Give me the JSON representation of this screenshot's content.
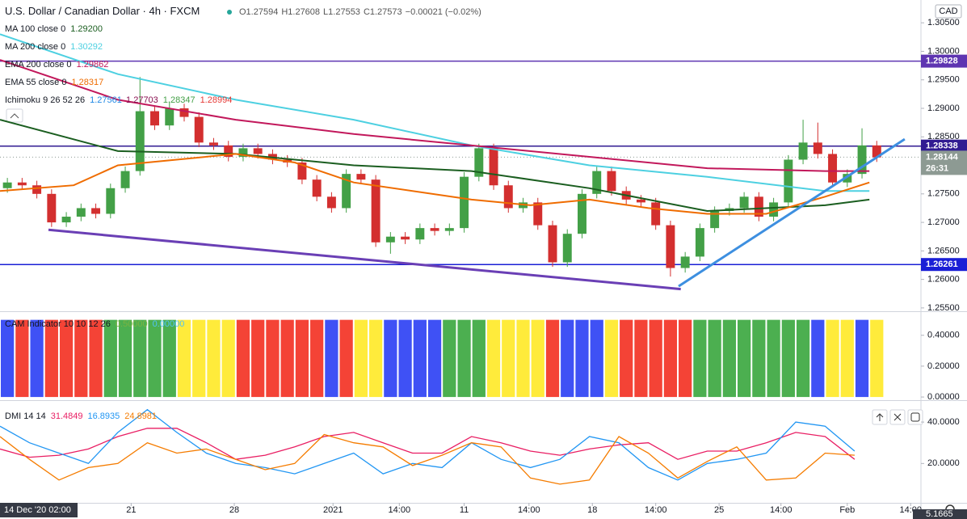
{
  "header": {
    "symbol": "U.S. Dollar / Canadian Dollar · 4h · FXCM",
    "quote": [
      "O1.27594",
      "H1.27608",
      "L1.27553",
      "C1.27573",
      "−0.00021 (−0.02%)"
    ],
    "currency": "CAD"
  },
  "xaxis": {
    "xlim": [
      0,
      62.5
    ],
    "cursor_label": "14 Dec '20 02:00",
    "xticks": [
      {
        "value": 8.9,
        "label": "21"
      },
      {
        "value": 15.9,
        "label": "28"
      },
      {
        "value": 22.6,
        "label": "2021"
      },
      {
        "value": 27.1,
        "label": "14:00"
      },
      {
        "value": 31.5,
        "label": "11"
      },
      {
        "value": 35.9,
        "label": "14:00"
      },
      {
        "value": 40.2,
        "label": "18"
      },
      {
        "value": 44.5,
        "label": "14:00"
      },
      {
        "value": 48.8,
        "label": "25"
      },
      {
        "value": 53.0,
        "label": "14:00"
      },
      {
        "value": 57.5,
        "label": "Feb"
      },
      {
        "value": 61.8,
        "label": "14:00"
      }
    ]
  },
  "chart_data": [
    {
      "type": "candlestick",
      "up_color": "#43a047",
      "down_color": "#d32f2f",
      "ylim": [
        1.2547,
        1.309
      ],
      "yticks": [
        {
          "value": 1.305,
          "label": "1.30500"
        },
        {
          "value": 1.3,
          "label": "1.30000"
        },
        {
          "value": 1.295,
          "label": "1.29500"
        },
        {
          "value": 1.29,
          "label": "1.29000"
        },
        {
          "value": 1.285,
          "label": "1.28500"
        },
        {
          "value": 1.28,
          "label": "1.28000"
        },
        {
          "value": 1.275,
          "label": "1.27500"
        },
        {
          "value": 1.27,
          "label": "1.27000"
        },
        {
          "value": 1.265,
          "label": "1.26500"
        },
        {
          "value": 1.26,
          "label": "1.26000"
        },
        {
          "value": 1.255,
          "label": "1.25500"
        }
      ],
      "ohlc": [
        [
          1.276,
          1.2778,
          1.2752,
          1.277
        ],
        [
          1.277,
          1.2778,
          1.2757,
          1.2765
        ],
        [
          1.2765,
          1.2773,
          1.2742,
          1.275
        ],
        [
          1.275,
          1.2758,
          1.2692,
          1.27
        ],
        [
          1.27,
          1.2718,
          1.2692,
          1.271
        ],
        [
          1.271,
          1.2733,
          1.2702,
          1.2725
        ],
        [
          1.2725,
          1.2733,
          1.2707,
          1.2715
        ],
        [
          1.2715,
          1.2768,
          1.2707,
          1.276
        ],
        [
          1.276,
          1.2798,
          1.2752,
          1.279
        ],
        [
          1.279,
          1.2955,
          1.2782,
          1.2895
        ],
        [
          1.2895,
          1.2903,
          1.2862,
          1.287
        ],
        [
          1.287,
          1.2912,
          1.2862,
          1.29
        ],
        [
          1.29,
          1.2908,
          1.2877,
          1.2885
        ],
        [
          1.2885,
          1.2893,
          1.2832,
          1.284
        ],
        [
          1.284,
          1.2848,
          1.2827,
          1.2835
        ],
        [
          1.2835,
          1.2843,
          1.2807,
          1.2815
        ],
        [
          1.2815,
          1.2838,
          1.2807,
          1.283
        ],
        [
          1.283,
          1.2838,
          1.2812,
          1.282
        ],
        [
          1.282,
          1.2828,
          1.2802,
          1.281
        ],
        [
          1.281,
          1.2818,
          1.2797,
          1.2805
        ],
        [
          1.2805,
          1.2813,
          1.2767,
          1.2775
        ],
        [
          1.2775,
          1.2783,
          1.2737,
          1.2745
        ],
        [
          1.2745,
          1.2753,
          1.2717,
          1.2725
        ],
        [
          1.2725,
          1.2793,
          1.2717,
          1.2785
        ],
        [
          1.2785,
          1.2793,
          1.2767,
          1.2775
        ],
        [
          1.2775,
          1.2783,
          1.2657,
          1.2665
        ],
        [
          1.2665,
          1.2683,
          1.2645,
          1.2675
        ],
        [
          1.2675,
          1.2683,
          1.2662,
          1.267
        ],
        [
          1.267,
          1.2698,
          1.2662,
          1.269
        ],
        [
          1.269,
          1.2698,
          1.2677,
          1.2685
        ],
        [
          1.2685,
          1.2698,
          1.2677,
          1.269
        ],
        [
          1.269,
          1.2788,
          1.2682,
          1.278
        ],
        [
          1.278,
          1.2838,
          1.2772,
          1.283
        ],
        [
          1.283,
          1.2838,
          1.2757,
          1.2765
        ],
        [
          1.2765,
          1.2773,
          1.2717,
          1.2725
        ],
        [
          1.2725,
          1.2743,
          1.2717,
          1.2735
        ],
        [
          1.2735,
          1.2743,
          1.2687,
          1.2695
        ],
        [
          1.2695,
          1.2703,
          1.2622,
          1.263
        ],
        [
          1.263,
          1.2688,
          1.2622,
          1.268
        ],
        [
          1.268,
          1.2758,
          1.2672,
          1.275
        ],
        [
          1.275,
          1.2798,
          1.2742,
          1.279
        ],
        [
          1.279,
          1.2798,
          1.2747,
          1.2755
        ],
        [
          1.2755,
          1.2763,
          1.2732,
          1.274
        ],
        [
          1.274,
          1.2748,
          1.2727,
          1.2735
        ],
        [
          1.2735,
          1.2743,
          1.2687,
          1.2695
        ],
        [
          1.2695,
          1.2703,
          1.2605,
          1.262
        ],
        [
          1.262,
          1.2648,
          1.2612,
          1.264
        ],
        [
          1.264,
          1.2698,
          1.2632,
          1.269
        ],
        [
          1.269,
          1.2728,
          1.2682,
          1.272
        ],
        [
          1.272,
          1.2733,
          1.2712,
          1.2725
        ],
        [
          1.2725,
          1.2753,
          1.2717,
          1.2745
        ],
        [
          1.2745,
          1.2753,
          1.2702,
          1.271
        ],
        [
          1.271,
          1.2743,
          1.2702,
          1.2735
        ],
        [
          1.2735,
          1.2818,
          1.2727,
          1.281
        ],
        [
          1.281,
          1.288,
          1.2802,
          1.284
        ],
        [
          1.284,
          1.2875,
          1.2812,
          1.282
        ],
        [
          1.282,
          1.2828,
          1.2762,
          1.277
        ],
        [
          1.277,
          1.2793,
          1.2762,
          1.2785
        ],
        [
          1.2785,
          1.2865,
          1.2777,
          1.2835
        ],
        [
          1.2835,
          1.2843,
          1.2806,
          1.2814
        ]
      ],
      "series": [
        {
          "name": "MA 100 close 0",
          "legend_label": "1.29200",
          "color": "#1b5e20",
          "x": [
            0,
            8,
            16,
            24,
            32,
            40,
            48,
            56,
            59
          ],
          "values": [
            1.288,
            1.2825,
            1.282,
            1.28,
            1.279,
            1.276,
            1.272,
            1.273,
            1.274
          ]
        },
        {
          "name": "MA 200 close 0",
          "legend_label": "1.30292",
          "color": "#4dd0e1",
          "x": [
            0,
            8,
            16,
            24,
            32,
            40,
            48,
            56,
            59
          ],
          "values": [
            1.303,
            1.296,
            1.2915,
            1.288,
            1.2835,
            1.28,
            1.278,
            1.2755,
            1.2755
          ]
        },
        {
          "name": "EMA 200 close 0",
          "legend_label": "1.29862",
          "color": "#c2185b",
          "x": [
            0,
            8,
            16,
            24,
            32,
            40,
            48,
            56,
            59
          ],
          "values": [
            1.2985,
            1.2915,
            1.288,
            1.2855,
            1.2835,
            1.2815,
            1.2795,
            1.279,
            1.279
          ]
        },
        {
          "name": "EMA 55 close 0",
          "legend_label": "1.28317",
          "color": "#ef6c00",
          "x": [
            0,
            5,
            8,
            16,
            20,
            24,
            32,
            36,
            40,
            44,
            48,
            52,
            56,
            59
          ],
          "values": [
            1.2755,
            1.2765,
            1.28,
            1.282,
            1.2805,
            1.277,
            1.274,
            1.273,
            1.274,
            1.2725,
            1.2715,
            1.2715,
            1.2745,
            1.277
          ]
        }
      ],
      "ichimoku": {
        "name": "Ichimoku 9 26 52 26",
        "labels": [
          "1.27561",
          "1.27703",
          "1.28347",
          "1.28994"
        ],
        "colors": [
          "#1e88e5",
          "#880e4f",
          "#43a047",
          "#e53935"
        ]
      },
      "levels": [
        {
          "value": 1.29828,
          "color": "#5e35b1",
          "line": "solid"
        },
        {
          "value": 1.28338,
          "color": "#311b92",
          "line": "solid"
        },
        {
          "value": 1.28144,
          "color": "#8d9a93",
          "line": "dotted",
          "countdown": "26:31"
        },
        {
          "value": 1.26261,
          "color": "#1a1fd6",
          "line": "solid"
        }
      ],
      "trendlines": [
        {
          "x": [
            3.29,
            46.2
          ],
          "y": [
            1.2687,
            1.2583
          ],
          "color": "#6a3fb5"
        },
        {
          "x": [
            46.05,
            61.4
          ],
          "y": [
            1.2588,
            1.2846
          ],
          "color": "#3d8fe0"
        }
      ]
    },
    {
      "type": "colorbar",
      "name": "CAM Indicator 10 10 12 26",
      "legend_labels": [
        "0.50000",
        "0.00000"
      ],
      "legend_colors": [
        "#7cb342",
        "#4fc3f7"
      ],
      "ylim": [
        -0.01,
        0.54
      ],
      "yticks": [
        {
          "value": 0.4,
          "label": "0.40000"
        },
        {
          "value": 0.2,
          "label": "0.20000"
        },
        {
          "value": 0,
          "label": "0.00000"
        }
      ],
      "values": [
        0.5,
        0.5,
        0.5,
        0.5,
        0.5,
        0.5,
        0.5,
        0.5,
        0.5,
        0.5,
        0.5,
        0.5,
        0.5,
        0.5,
        0.5,
        0.5,
        0.5,
        0.5,
        0.5,
        0.5,
        0.5,
        0.5,
        0.5,
        0.5,
        0.5,
        0.5,
        0.5,
        0.5,
        0.5,
        0.5,
        0.5,
        0.5,
        0.5,
        0.5,
        0.5,
        0.5,
        0.5,
        0.5,
        0.5,
        0.5,
        0.5,
        0.5,
        0.5,
        0.5,
        0.5,
        0.5,
        0.5,
        0.5,
        0.5,
        0.5,
        0.5,
        0.5,
        0.5,
        0.5,
        0.5,
        0.5,
        0.5,
        0.5,
        0.5,
        0.5
      ],
      "colors": [
        "#3f51f5",
        "#f44336",
        "#3f51f5",
        "#f44336",
        "#f44336",
        "#f44336",
        "#f44336",
        "#4caf50",
        "#4caf50",
        "#4caf50",
        "#4caf50",
        "#4caf50",
        "#ffeb3b",
        "#ffeb3b",
        "#ffeb3b",
        "#ffeb3b",
        "#f44336",
        "#f44336",
        "#f44336",
        "#f44336",
        "#f44336",
        "#f44336",
        "#3f51f5",
        "#f44336",
        "#ffeb3b",
        "#ffeb3b",
        "#3f51f5",
        "#3f51f5",
        "#3f51f5",
        "#3f51f5",
        "#4caf50",
        "#4caf50",
        "#4caf50",
        "#ffeb3b",
        "#ffeb3b",
        "#ffeb3b",
        "#ffeb3b",
        "#f44336",
        "#3f51f5",
        "#3f51f5",
        "#3f51f5",
        "#ffeb3b",
        "#f44336",
        "#f44336",
        "#f44336",
        "#f44336",
        "#f44336",
        "#4caf50",
        "#4caf50",
        "#4caf50",
        "#4caf50",
        "#4caf50",
        "#4caf50",
        "#4caf50",
        "#4caf50",
        "#3f51f5",
        "#ffeb3b",
        "#ffeb3b",
        "#3f51f5",
        "#ffeb3b"
      ]
    },
    {
      "type": "line",
      "name": "DMI 14 14",
      "ylim": [
        1,
        49.4
      ],
      "last_label": "5.1665",
      "yticks": [
        {
          "value": 40,
          "label": "40.0000"
        },
        {
          "value": 20,
          "label": "20.0000"
        }
      ],
      "x": [
        0,
        2,
        4,
        6,
        8,
        10,
        12,
        14,
        16,
        18,
        20,
        22,
        24,
        26,
        28,
        30,
        32,
        34,
        36,
        38,
        40,
        42,
        44,
        46,
        48,
        50,
        52,
        54,
        56,
        58
      ],
      "series": [
        {
          "name": "31.4849",
          "color": "#e91e63",
          "values": [
            27,
            23,
            24,
            27,
            33,
            37,
            37,
            30,
            22,
            24,
            28,
            33,
            35,
            30,
            25,
            25,
            33,
            30,
            26,
            24,
            27,
            29,
            30,
            22,
            26,
            26,
            30,
            35,
            33,
            22
          ]
        },
        {
          "name": "16.8935",
          "color": "#2196f3",
          "values": [
            38,
            30,
            25,
            20,
            35,
            46,
            35,
            25,
            20,
            18,
            15,
            20,
            25,
            15,
            20,
            18,
            30,
            22,
            18,
            22,
            33,
            30,
            18,
            12,
            20,
            22,
            25,
            40,
            38,
            26
          ]
        },
        {
          "name": "24.8981",
          "color": "#f57c00",
          "values": [
            33,
            22,
            12,
            18,
            20,
            30,
            25,
            27,
            22,
            17,
            20,
            34,
            30,
            28,
            19,
            24,
            30,
            28,
            13,
            10,
            12,
            33,
            25,
            13,
            21,
            28,
            12,
            13,
            25,
            24
          ]
        }
      ]
    }
  ]
}
